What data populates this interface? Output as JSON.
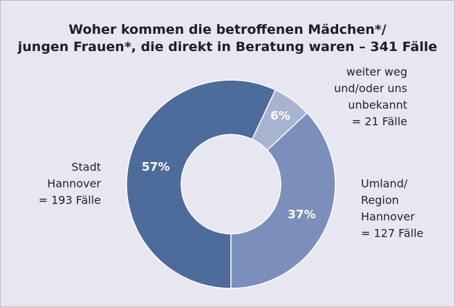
{
  "chart_data": {
    "type": "donut",
    "title": [
      "Woher kommen die betroffenen Mädchen*/",
      "jungen Frauen*, die direkt in Beratung waren – 341 Fälle"
    ],
    "categories": [
      [
        "Stadt",
        "Hannover",
        "= 193 Fälle"
      ],
      [
        "weiter weg",
        "und/oder uns",
        "unbekannt",
        "= 21 Fälle"
      ],
      [
        "Umland/",
        "Region",
        "Hannover",
        "= 127 Fälle"
      ]
    ],
    "values": [
      57,
      6,
      37
    ],
    "value_labels": [
      "57%",
      "6%",
      "37%"
    ],
    "colors": [
      "#4d6b9b",
      "#a8b3d1",
      "#7b8fbc"
    ]
  }
}
